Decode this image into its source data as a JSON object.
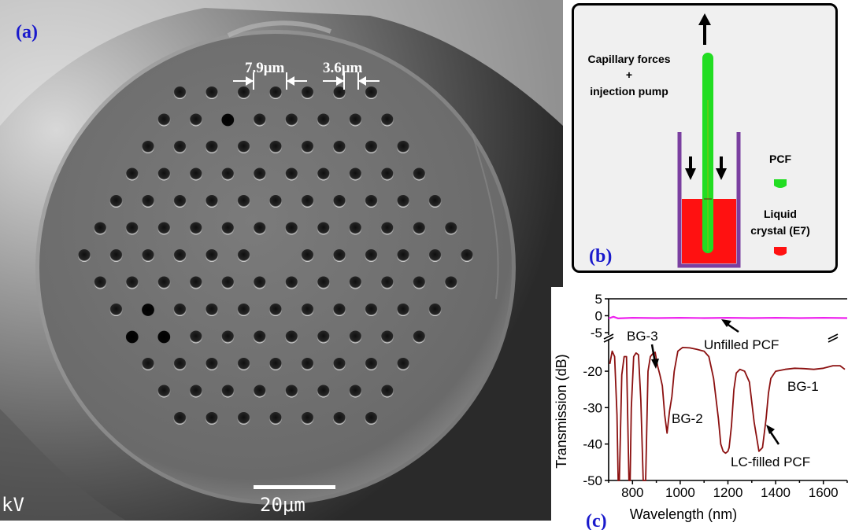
{
  "panel_a": {
    "label": "(a)",
    "pitch_label": "7.9μm",
    "hole_label": "3.6μm",
    "scale_label": "20μm",
    "kv_label": "kV",
    "colors": {
      "label": "#1a1acc",
      "fiber": "#6e6e6e",
      "hole": "#141414"
    }
  },
  "panel_b": {
    "label": "(b)",
    "pump_label_1": "Capillary forces",
    "pump_label_2": "+",
    "pump_label_3": "injection pump",
    "pcf_label": "PCF",
    "lc_label_1": "Liquid",
    "lc_label_2": "crystal (E7)",
    "colors": {
      "pcf": "#22dd22",
      "lc": "#ff1111",
      "container": "#7a3fa0",
      "label": "#1a1acc"
    }
  },
  "panel_c": {
    "label": "(c)",
    "chart_data": {
      "type": "line",
      "xlabel": "Wavelength (nm)",
      "ylabel": "Transmission (dB)",
      "xlim": [
        700,
        1700
      ],
      "xticks": [
        800,
        1000,
        1200,
        1400,
        1600
      ],
      "upper_ylim": [
        -5,
        5
      ],
      "upper_yticks": [
        5,
        0,
        -5
      ],
      "lower_ylim": [
        -50,
        -12
      ],
      "lower_yticks": [
        -20,
        -30,
        -40,
        -50
      ],
      "axis_break": true,
      "grid": false,
      "series": [
        {
          "name": "Unfilled PCF",
          "color": "#ee22ee",
          "x": [
            700,
            720,
            740,
            800,
            900,
            1000,
            1100,
            1200,
            1300,
            1400,
            1500,
            1600,
            1700
          ],
          "y": [
            -0.8,
            -0.3,
            -0.8,
            -0.6,
            -0.7,
            -0.6,
            -0.7,
            -0.6,
            -0.7,
            -0.6,
            -0.7,
            -0.6,
            -0.7
          ]
        },
        {
          "name": "LC-filled PCF",
          "color": "#8b1010",
          "x": [
            705,
            715,
            725,
            735,
            740,
            745,
            755,
            765,
            775,
            785,
            790,
            795,
            805,
            815,
            825,
            835,
            845,
            855,
            865,
            875,
            885,
            895,
            905,
            915,
            925,
            935,
            945,
            955,
            965,
            975,
            990,
            1010,
            1040,
            1070,
            1100,
            1120,
            1140,
            1160,
            1170,
            1180,
            1190,
            1200,
            1205,
            1215,
            1225,
            1235,
            1250,
            1270,
            1290,
            1310,
            1330,
            1345,
            1360,
            1370,
            1380,
            1400,
            1440,
            1480,
            1520,
            1560,
            1600,
            1640,
            1670,
            1690
          ],
          "y": [
            -18,
            -14.5,
            -16,
            -32,
            -50,
            -50,
            -21,
            -16,
            -16,
            -50,
            -50,
            -30,
            -16,
            -15,
            -15.5,
            -28,
            -50,
            -50,
            -20,
            -16,
            -15.2,
            -14.8,
            -18.5,
            -21,
            -24,
            -32,
            -37,
            -31,
            -27,
            -20,
            -14.5,
            -13.5,
            -13.6,
            -14,
            -14.5,
            -16,
            -22,
            -33,
            -40,
            -42,
            -42.5,
            -42,
            -41,
            -35,
            -25,
            -20.5,
            -19.5,
            -20,
            -23,
            -34,
            -42,
            -41,
            -33,
            -26,
            -22,
            -20,
            -19.5,
            -19.2,
            -19.3,
            -19.5,
            -19.2,
            -18.5,
            -18.5,
            -19.5
          ]
        }
      ],
      "annotations": [
        "BG-3",
        "BG-2",
        "BG-1",
        "Unfilled PCF",
        "LC-filled PCF"
      ],
      "label_bg1": "BG-1",
      "label_bg2": "BG-2",
      "label_bg3": "BG-3",
      "label_unfilled": "Unfilled PCF",
      "label_lcfilled": "LC-filled PCF"
    }
  }
}
